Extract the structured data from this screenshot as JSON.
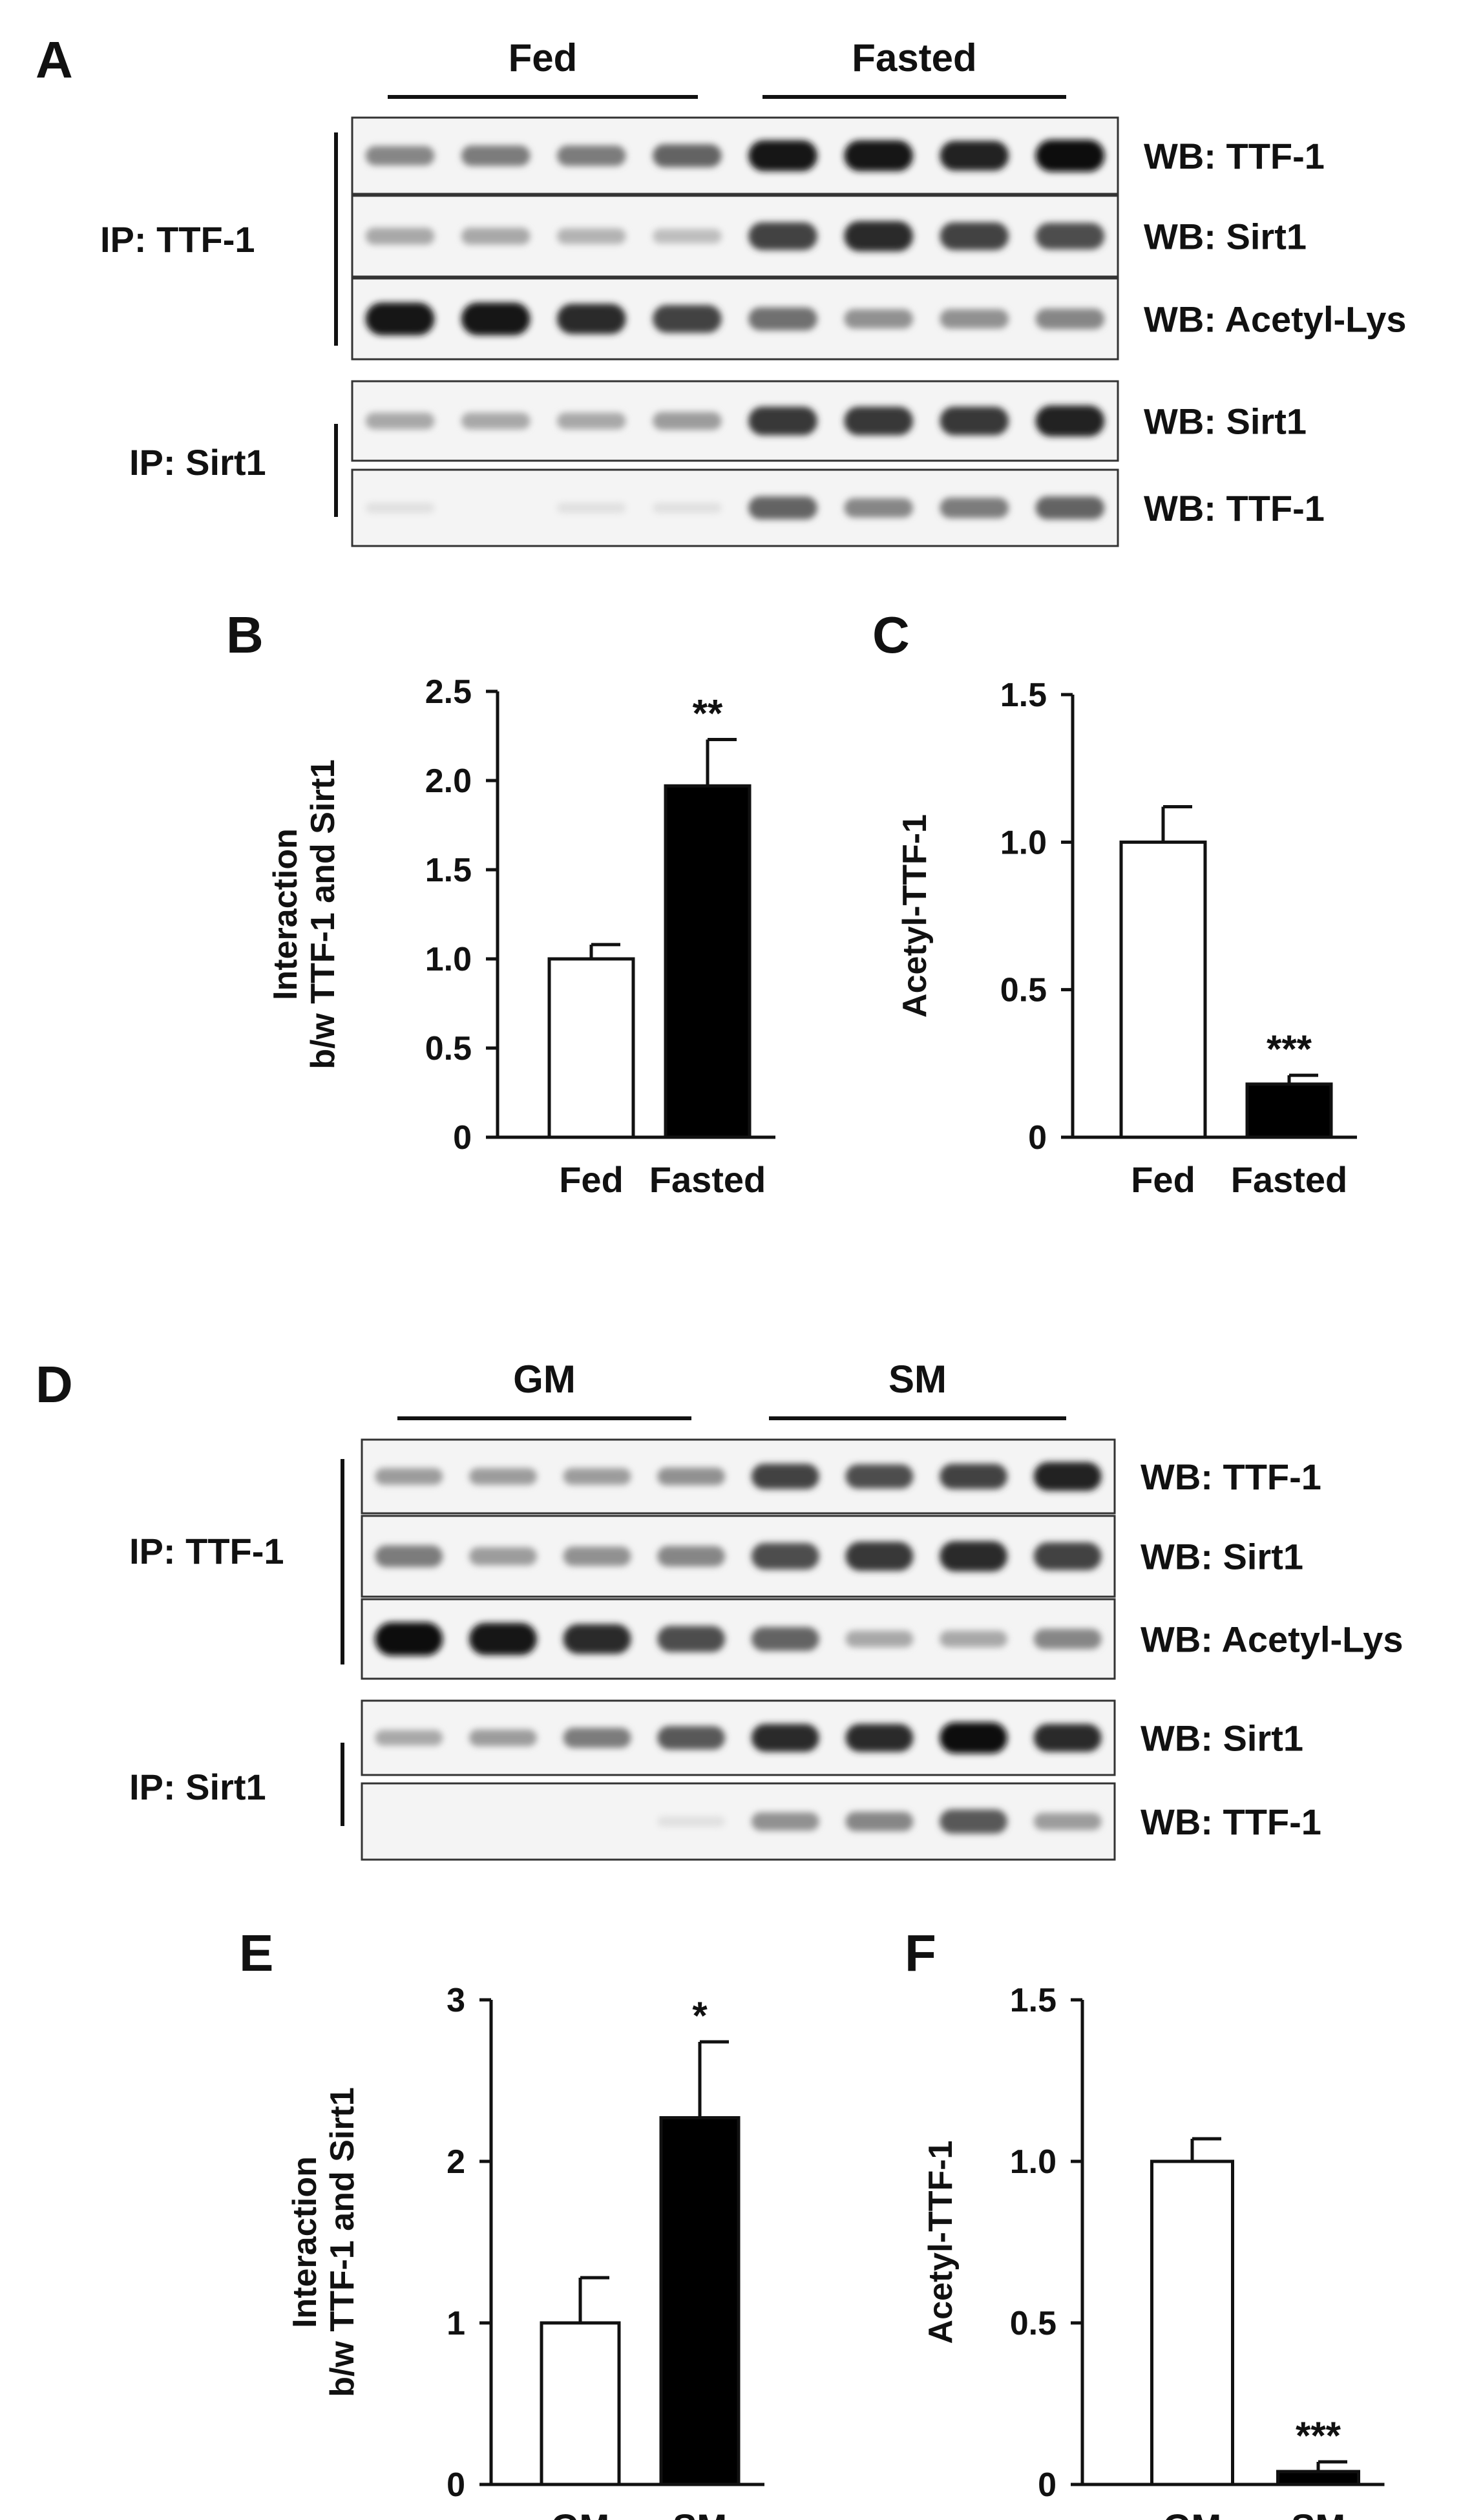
{
  "blots": [
    {
      "letter": "A",
      "groups": [
        "Fed",
        "Fasted"
      ],
      "ip_groups": [
        {
          "ip": "IP: TTF-1",
          "wb": [
            "WB: TTF-1",
            "WB: Sirt1",
            "WB: Acetyl-Lys"
          ]
        },
        {
          "ip": "IP: Sirt1",
          "wb": [
            "WB: Sirt1",
            "WB: TTF-1"
          ]
        }
      ],
      "band_intensity": [
        [
          0.45,
          0.5,
          0.5,
          0.6,
          0.95,
          0.95,
          0.9,
          1.0
        ],
        [
          0.3,
          0.3,
          0.25,
          0.2,
          0.75,
          0.85,
          0.75,
          0.7
        ],
        [
          0.95,
          0.95,
          0.85,
          0.75,
          0.55,
          0.4,
          0.4,
          0.45
        ],
        [
          0.3,
          0.3,
          0.3,
          0.35,
          0.8,
          0.8,
          0.8,
          0.9
        ],
        [
          0.05,
          0.0,
          0.05,
          0.05,
          0.6,
          0.45,
          0.5,
          0.6
        ]
      ]
    },
    {
      "letter": "D",
      "groups": [
        "GM",
        "SM"
      ],
      "ip_groups": [
        {
          "ip": "IP: TTF-1",
          "wb": [
            "WB: TTF-1",
            "WB: Sirt1",
            "WB: Acetyl-Lys"
          ]
        },
        {
          "ip": "IP: Sirt1",
          "wb": [
            "WB: Sirt1",
            "WB: TTF-1"
          ]
        }
      ],
      "band_intensity": [
        [
          0.35,
          0.35,
          0.35,
          0.4,
          0.75,
          0.7,
          0.75,
          0.9
        ],
        [
          0.5,
          0.35,
          0.4,
          0.45,
          0.7,
          0.8,
          0.85,
          0.75
        ],
        [
          1.0,
          0.95,
          0.85,
          0.7,
          0.6,
          0.3,
          0.3,
          0.45
        ],
        [
          0.3,
          0.35,
          0.5,
          0.65,
          0.85,
          0.85,
          1.0,
          0.85
        ],
        [
          0.0,
          0.0,
          0.0,
          0.05,
          0.4,
          0.45,
          0.65,
          0.35
        ]
      ]
    }
  ],
  "chart_data": [
    {
      "letter": "B",
      "type": "bar",
      "categories": [
        "Fed",
        "Fasted"
      ],
      "values": [
        1.0,
        1.97
      ],
      "errors": [
        0.08,
        0.26
      ],
      "fills": [
        "#ffffff",
        "#000000"
      ],
      "ylim": [
        0,
        2.5
      ],
      "yticks": [
        "0",
        "0.5",
        "1.0",
        "1.5",
        "2.0",
        "2.5"
      ],
      "ylabel_lines": [
        "Interaction",
        "b/w TTF-1 and Sirt1"
      ],
      "significance": [
        "",
        "**"
      ]
    },
    {
      "letter": "C",
      "type": "bar",
      "categories": [
        "Fed",
        "Fasted"
      ],
      "values": [
        1.0,
        0.18
      ],
      "errors": [
        0.12,
        0.03
      ],
      "fills": [
        "#ffffff",
        "#000000"
      ],
      "ylim": [
        0,
        1.5
      ],
      "yticks": [
        "0",
        "0.5",
        "1.0",
        "1.5"
      ],
      "ylabel_lines": [
        "Acetyl-TTF-1"
      ],
      "significance": [
        "",
        "***"
      ]
    },
    {
      "letter": "E",
      "type": "bar",
      "categories": [
        "GM",
        "SM"
      ],
      "values": [
        1.0,
        2.27
      ],
      "errors": [
        0.28,
        0.47
      ],
      "fills": [
        "#ffffff",
        "#000000"
      ],
      "ylim": [
        0,
        3
      ],
      "yticks": [
        "0",
        "1",
        "2",
        "3"
      ],
      "ylabel_lines": [
        "Interaction",
        "b/w TTF-1 and Sirt1"
      ],
      "significance": [
        "",
        "*"
      ]
    },
    {
      "letter": "F",
      "type": "bar",
      "categories": [
        "GM",
        "SM"
      ],
      "values": [
        1.0,
        0.04
      ],
      "errors": [
        0.07,
        0.03
      ],
      "fills": [
        "#ffffff",
        "#000000"
      ],
      "ylim": [
        0,
        1.5
      ],
      "yticks": [
        "0",
        "0.5",
        "1.0",
        "1.5"
      ],
      "ylabel_lines": [
        "Acetyl-TTF-1"
      ],
      "significance": [
        "",
        "***"
      ]
    }
  ]
}
